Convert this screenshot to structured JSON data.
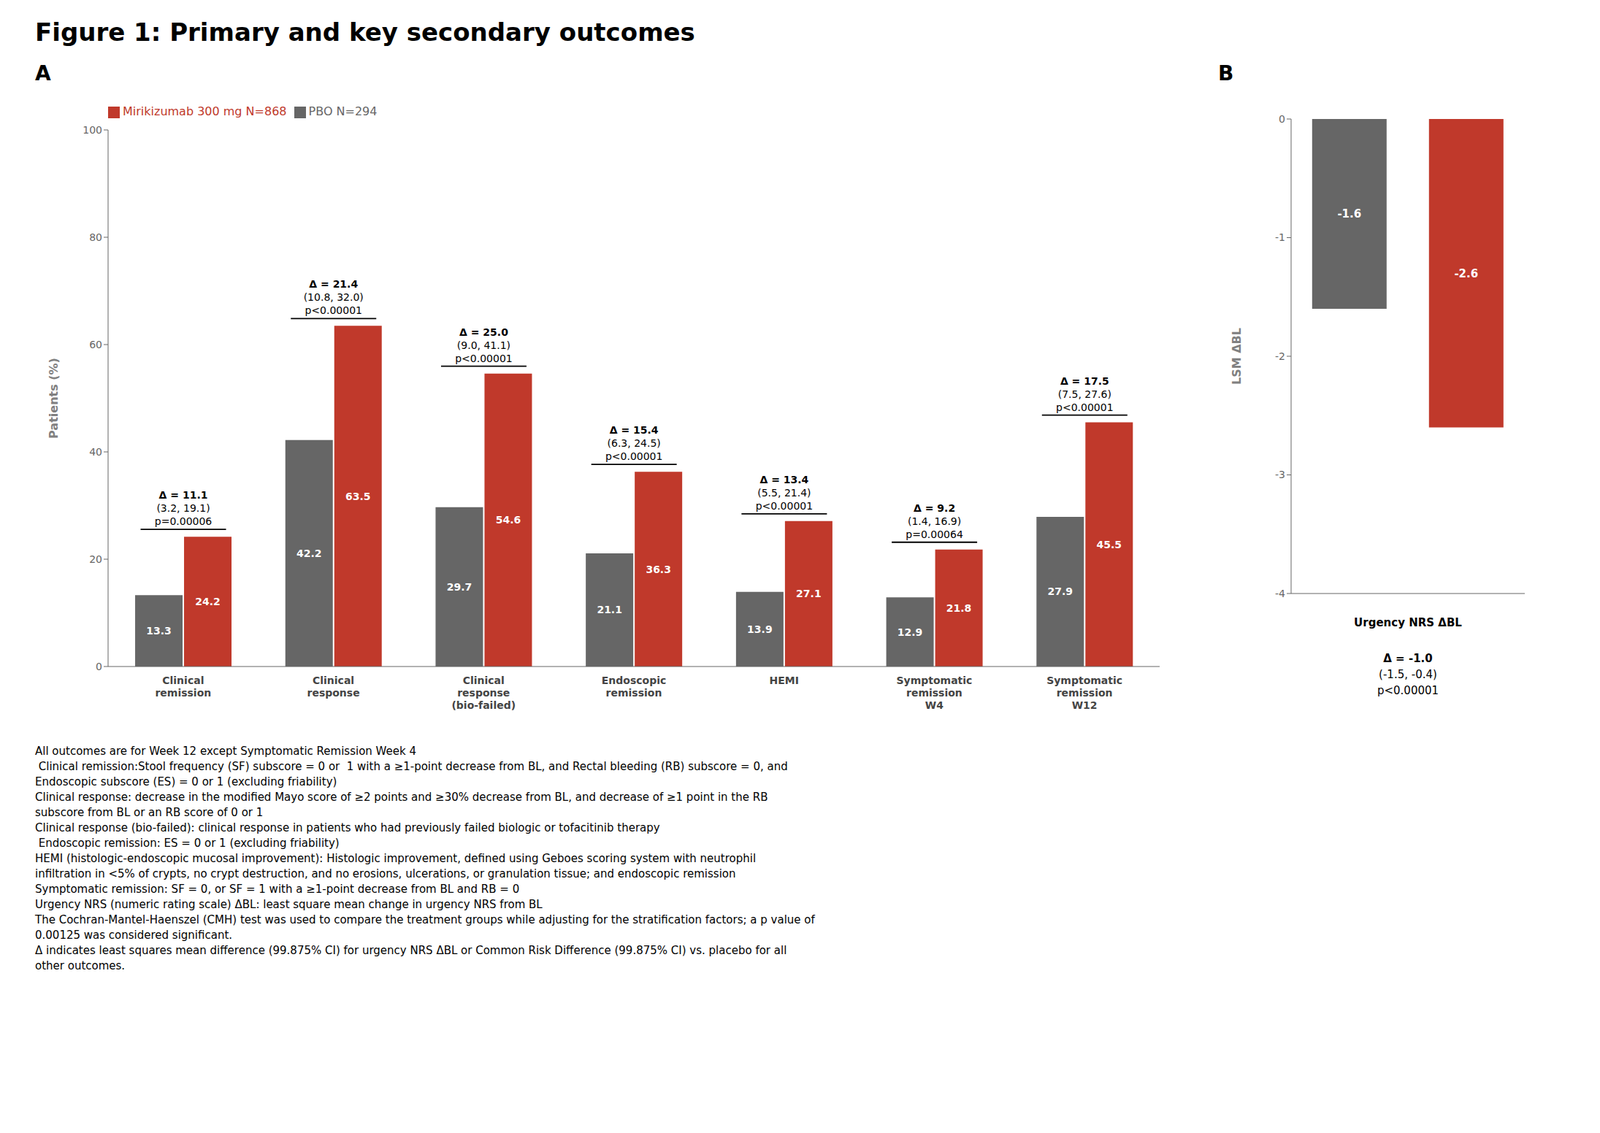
{
  "title": "Figure 1: Primary and key secondary outcomes",
  "chart_data": [
    {
      "type": "bar",
      "title": "A",
      "categories": [
        "Clinical\nremission",
        "Clinical\nresponse",
        "Clinical\nresponse\n(bio-failed)",
        "Endoscopic\nremission",
        "HEMI",
        "Symptomatic\nremission\nW4",
        "Symptomatic\nremission\nW12"
      ],
      "series": [
        {
          "name": "PBO N=294",
          "color": "#666666",
          "values": [
            13.3,
            42.2,
            29.7,
            21.1,
            13.9,
            12.9,
            27.9
          ]
        },
        {
          "name": "Mirikizumab 300 mg N=868",
          "color": "#C0392B",
          "values": [
            24.2,
            63.5,
            54.6,
            36.3,
            27.1,
            21.8,
            45.5
          ]
        }
      ],
      "annotations": [
        [
          "Δ = 11.1",
          "(3.2, 19.1)",
          "p=0.00006"
        ],
        [
          "Δ = 21.4",
          "(10.8, 32.0)",
          "p<0.00001"
        ],
        [
          "Δ = 25.0",
          "(9.0, 41.1)",
          "p<0.00001"
        ],
        [
          "Δ = 15.4",
          "(6.3, 24.5)",
          "p<0.00001"
        ],
        [
          "Δ = 13.4",
          "(5.5, 21.4)",
          "p<0.00001"
        ],
        [
          "Δ = 9.2",
          "(1.4, 16.9)",
          "p=0.00064"
        ],
        [
          "Δ = 17.5",
          "(7.5, 27.6)",
          "p<0.00001"
        ]
      ],
      "ylabel": "Patients (%)",
      "ylim": [
        0,
        100
      ],
      "yticks": [
        0,
        20,
        40,
        60,
        80,
        100
      ],
      "data_labels": true,
      "legend": "upper left",
      "grid": false
    },
    {
      "type": "bar",
      "title": "B",
      "categories": [
        null,
        null
      ],
      "values": [
        -1.6,
        -2.6
      ],
      "colors": [
        "#666666",
        "#C0392B"
      ],
      "annotations": [
        "Δ = -1.0",
        "(-1.5, -0.4)",
        "p<0.00001"
      ],
      "ylabel": "LSM ΔBL",
      "xlabel": "Urgency NRS ΔBL",
      "ylim": [
        -4,
        0
      ],
      "yticks": [
        0,
        -1,
        -2,
        -3,
        -4
      ],
      "data_labels": true,
      "tick_labels": "y",
      "grid": false
    }
  ],
  "footnotes": [
    "All outcomes are for Week 12 except Symptomatic Remission Week 4",
    " Clinical remission:Stool frequency (SF) subscore = 0 or  1 with a ≥1-point decrease from BL, and Rectal bleeding (RB) subscore = 0, and",
    "Endoscopic subscore (ES) = 0 or 1 (excluding friability)",
    "Clinical response: decrease in the modified Mayo score of ≥2 points and ≥30% decrease from BL, and decrease of ≥1 point in the RB",
    "subscore from BL or an RB score of 0 or 1",
    "Clinical response (bio-failed): clinical response in patients who had previously failed biologic or tofacitinib therapy",
    " Endoscopic remission: ES = 0 or 1 (excluding friability)",
    "HEMI (histologic-endoscopic mucosal improvement): Histologic improvement, defined using Geboes scoring system with neutrophil",
    "infiltration in <5% of crypts, no crypt destruction, and no erosions, ulcerations, or granulation tissue; and endoscopic remission",
    "Symptomatic remission: SF = 0, or SF = 1 with a ≥1-point decrease from BL and RB = 0",
    "Urgency NRS (numeric rating scale) ΔBL: least square mean change in urgency NRS from BL",
    "The Cochran-Mantel-Haenszel (CMH) test was used to compare the treatment groups while adjusting for the stratification factors; a p value of",
    "0.00125 was considered significant.",
    "Δ indicates least squares mean difference (99.875% CI) for urgency NRS ΔBL or Common Risk Difference (99.875% CI) vs. placebo for all",
    "other outcomes."
  ]
}
